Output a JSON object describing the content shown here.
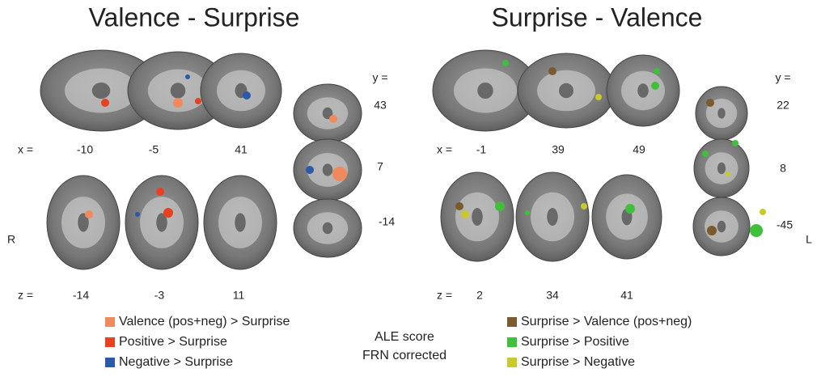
{
  "panels": [
    {
      "title": "Valence - Surprise",
      "sagittal": {
        "axis_label": "x =",
        "slices": [
          "-10",
          "-5",
          "41"
        ]
      },
      "axial": {
        "axis_label": "z =",
        "slices": [
          "-14",
          "-3",
          "11"
        ]
      },
      "coronal": {
        "axis_label": "y =",
        "slices": [
          "43",
          "7",
          "-14"
        ]
      }
    },
    {
      "title": "Surprise - Valence",
      "sagittal": {
        "axis_label": "x =",
        "slices": [
          "-1",
          "39",
          "49"
        ]
      },
      "axial": {
        "axis_label": "z =",
        "slices": [
          "2",
          "34",
          "41"
        ]
      },
      "coronal": {
        "axis_label": "y =",
        "slices": [
          "22",
          "8",
          "-45"
        ]
      }
    }
  ],
  "side_labels": {
    "right": "R",
    "left": "L"
  },
  "legend": {
    "left": [
      {
        "label": "Valence (pos+neg) > Surprise",
        "color": "#f08a5d"
      },
      {
        "label": "Positive > Surprise",
        "color": "#e8411f"
      },
      {
        "label": "Negative > Surprise",
        "color": "#2a5aa8"
      }
    ],
    "center": [
      "ALE score",
      "FRN corrected"
    ],
    "right": [
      {
        "label": "Surprise > Valence (pos+neg)",
        "color": "#7a5a2e"
      },
      {
        "label": "Surprise > Positive",
        "color": "#3fbf3a"
      },
      {
        "label": "Surprise > Negative",
        "color": "#c9c92a"
      }
    ]
  }
}
